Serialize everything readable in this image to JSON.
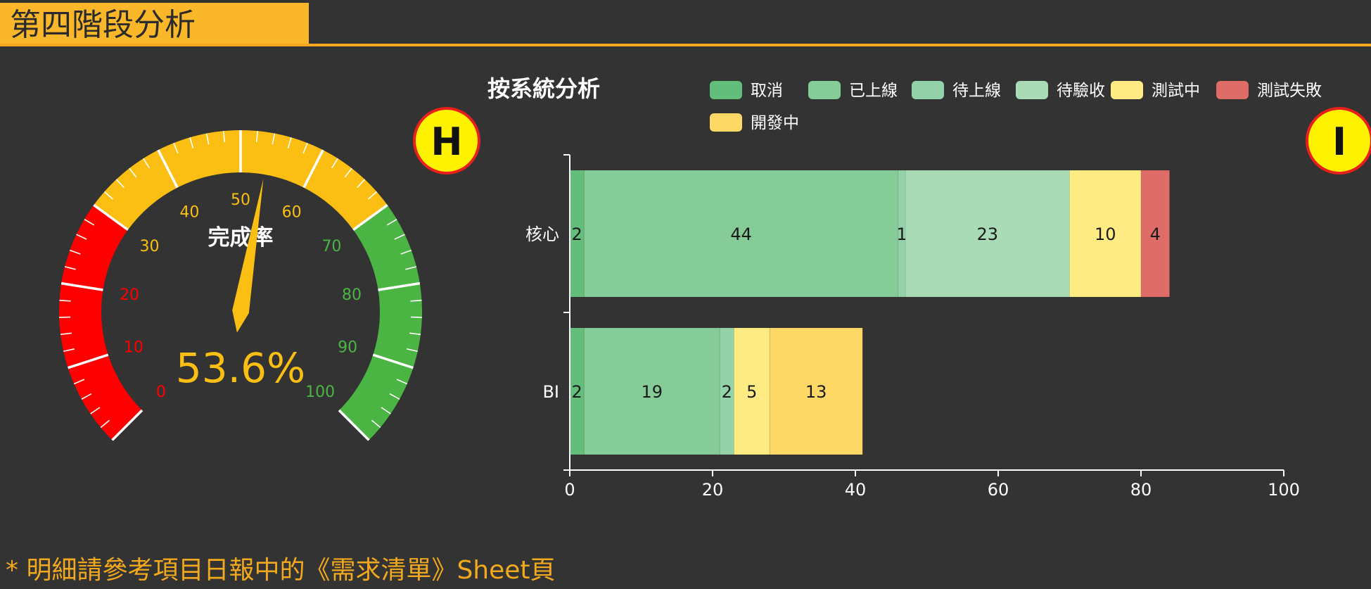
{
  "page": {
    "title": "第四階段分析",
    "footnote": "* 明細請參考項目日報中的《需求清單》Sheet頁"
  },
  "badges": {
    "left": "H",
    "right": "I"
  },
  "gauge": {
    "title": "完成率",
    "value": 53.6,
    "value_label": "53.6%",
    "min": 0,
    "max": 100,
    "tick_labels": [
      "0",
      "10",
      "20",
      "30",
      "40",
      "50",
      "60",
      "70",
      "80",
      "90",
      "100"
    ],
    "bands": [
      {
        "from": 0,
        "to": 30,
        "color": "#FF0000"
      },
      {
        "from": 30,
        "to": 70,
        "color": "#FBBF14"
      },
      {
        "from": 70,
        "to": 100,
        "color": "#4BB543"
      }
    ],
    "colors": {
      "needle": "#FBBF14",
      "value_text": "#FBBF14"
    }
  },
  "chart_data": {
    "type": "bar",
    "orientation": "horizontal",
    "stacked": true,
    "title": "按系統分析",
    "categories": [
      "核心",
      "BI"
    ],
    "series": [
      {
        "name": "取消",
        "color": "#63BE7B",
        "values": [
          2,
          2
        ]
      },
      {
        "name": "已上線",
        "color": "#85CC98",
        "values": [
          44,
          19
        ]
      },
      {
        "name": "待上線",
        "color": "#94D3A9",
        "values": [
          1,
          2
        ]
      },
      {
        "name": "待驗收",
        "color": "#A8DBB6",
        "values": [
          23,
          0
        ]
      },
      {
        "name": "測試中",
        "color": "#FFEB84",
        "values": [
          10,
          5
        ]
      },
      {
        "name": "測試失敗",
        "color": "#E06C68",
        "values": [
          4,
          0
        ]
      },
      {
        "name": "開發中",
        "color": "#FFD966",
        "values": [
          0,
          13
        ]
      }
    ],
    "xlim": [
      0,
      100
    ],
    "xticks": [
      0,
      20,
      40,
      60,
      80,
      100
    ],
    "xtick_labels": [
      "0",
      "20",
      "40",
      "60",
      "80",
      "100"
    ],
    "legend": "top",
    "grid": false
  }
}
